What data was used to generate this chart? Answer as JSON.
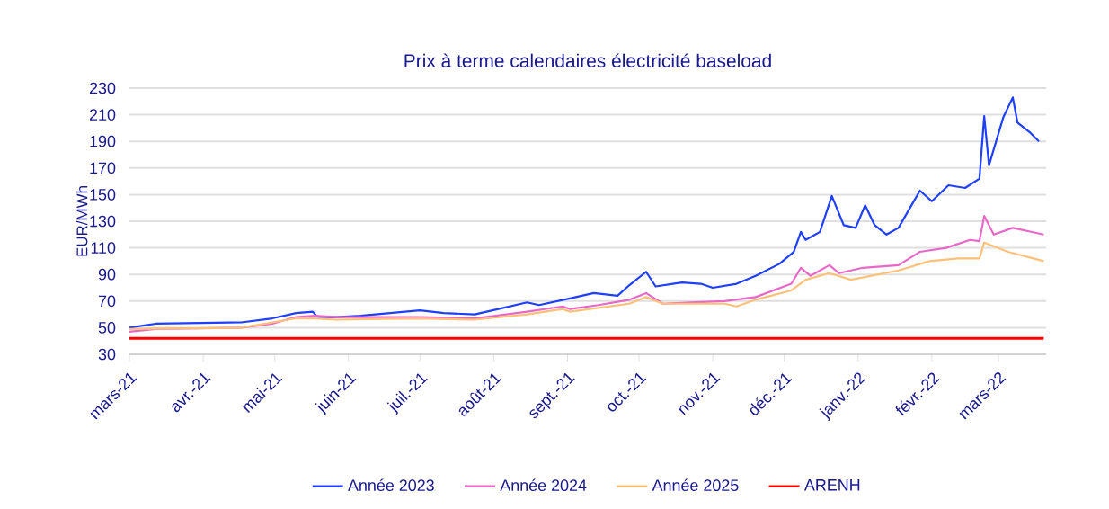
{
  "chart_data": {
    "type": "line",
    "title": "Prix à terme calendaires électricité baseload",
    "ylabel": "EUR/MWh",
    "xlim": [
      "2021-03-01",
      "2022-03-21"
    ],
    "ylim": [
      30,
      230
    ],
    "yticks": [
      30,
      50,
      70,
      90,
      110,
      130,
      150,
      170,
      190,
      210,
      230
    ],
    "xticks": [
      {
        "value": "2021-03-01",
        "label": "mars-21"
      },
      {
        "value": "2021-04-01",
        "label": "avr.-21"
      },
      {
        "value": "2021-05-01",
        "label": "mai-21"
      },
      {
        "value": "2021-06-01",
        "label": "juin-21"
      },
      {
        "value": "2021-07-01",
        "label": "juil.-21"
      },
      {
        "value": "2021-08-01",
        "label": "août-21"
      },
      {
        "value": "2021-09-01",
        "label": "sept.-21"
      },
      {
        "value": "2021-10-01",
        "label": "oct.-21"
      },
      {
        "value": "2021-11-01",
        "label": "nov.-21"
      },
      {
        "value": "2021-12-01",
        "label": "déc.-21"
      },
      {
        "value": "2022-01-01",
        "label": "janv.-22"
      },
      {
        "value": "2022-02-01",
        "label": "févr.-22"
      },
      {
        "value": "2022-03-01",
        "label": "mars-22"
      }
    ],
    "grid": "y",
    "legend": "bottom",
    "series": [
      {
        "name": "Année 2023",
        "color": "#1f3fff",
        "x": [
          "2021-03-01",
          "2021-03-12",
          "2021-04-17",
          "2021-04-30",
          "2021-05-10",
          "2021-05-17",
          "2021-05-19",
          "2021-05-27",
          "2021-06-06",
          "2021-07-01",
          "2021-07-11",
          "2021-07-24",
          "2021-08-03",
          "2021-08-15",
          "2021-08-20",
          "2021-09-02",
          "2021-09-12",
          "2021-09-22",
          "2021-09-27",
          "2021-10-04",
          "2021-10-08",
          "2021-10-19",
          "2021-10-27",
          "2021-11-01",
          "2021-11-11",
          "2021-11-19",
          "2021-11-29",
          "2021-12-05",
          "2021-12-08",
          "2021-12-10",
          "2021-12-16",
          "2021-12-21",
          "2021-12-26",
          "2021-12-31",
          "2022-01-04",
          "2022-01-08",
          "2022-01-13",
          "2022-01-18",
          "2022-01-27",
          "2022-02-01",
          "2022-02-08",
          "2022-02-15",
          "2022-02-21",
          "2022-02-23",
          "2022-02-25",
          "2022-03-03",
          "2022-03-07",
          "2022-03-09",
          "2022-03-14",
          "2022-03-18"
        ],
        "values": [
          50,
          53,
          54,
          57,
          61,
          62,
          58,
          58,
          59,
          63,
          61,
          60,
          64,
          69,
          67,
          72,
          76,
          74,
          82,
          92,
          81,
          84,
          83,
          80,
          83,
          89,
          98,
          107,
          122,
          116,
          122,
          149,
          127,
          125,
          142,
          127,
          120,
          125,
          153,
          145,
          157,
          155,
          162,
          209,
          172,
          208,
          223,
          204,
          197,
          190
        ]
      },
      {
        "name": "Année 2024",
        "color": "#e868c8",
        "x": [
          "2021-03-01",
          "2021-03-12",
          "2021-04-17",
          "2021-04-30",
          "2021-05-10",
          "2021-05-18",
          "2021-05-27",
          "2021-07-01",
          "2021-07-24",
          "2021-08-15",
          "2021-08-30",
          "2021-09-02",
          "2021-09-14",
          "2021-09-27",
          "2021-10-04",
          "2021-10-11",
          "2021-11-06",
          "2021-11-19",
          "2021-12-04",
          "2021-12-08",
          "2021-12-12",
          "2021-12-20",
          "2021-12-24",
          "2022-01-03",
          "2022-01-18",
          "2022-01-27",
          "2022-02-07",
          "2022-02-17",
          "2022-02-21",
          "2022-02-23",
          "2022-02-27",
          "2022-03-07",
          "2022-03-20"
        ],
        "values": [
          47,
          49,
          50,
          53,
          58,
          59,
          58,
          58,
          57,
          62,
          66,
          64,
          67,
          71,
          76,
          68,
          70,
          73,
          83,
          95,
          89,
          97,
          91,
          95,
          97,
          107,
          110,
          116,
          115,
          134,
          120,
          125,
          120
        ]
      },
      {
        "name": "Année 2025",
        "color": "#ffc07a",
        "x": [
          "2021-03-01",
          "2021-04-17",
          "2021-05-10",
          "2021-05-18",
          "2021-05-27",
          "2021-07-01",
          "2021-07-24",
          "2021-08-15",
          "2021-08-30",
          "2021-09-02",
          "2021-09-27",
          "2021-10-04",
          "2021-10-11",
          "2021-11-06",
          "2021-11-11",
          "2021-11-19",
          "2021-12-04",
          "2021-12-10",
          "2021-12-20",
          "2021-12-29",
          "2022-01-18",
          "2022-01-31",
          "2022-02-12",
          "2022-02-21",
          "2022-02-23",
          "2022-03-05",
          "2022-03-20"
        ],
        "values": [
          49,
          50,
          57,
          57,
          56,
          57,
          56,
          60,
          64,
          62,
          68,
          73,
          68,
          68,
          66,
          71,
          78,
          86,
          91,
          86,
          93,
          100,
          102,
          102,
          114,
          107,
          100
        ]
      },
      {
        "name": "ARENH",
        "color": "#ff0000",
        "x": [
          "2021-03-01",
          "2022-03-20"
        ],
        "values": [
          42,
          42
        ]
      }
    ]
  }
}
